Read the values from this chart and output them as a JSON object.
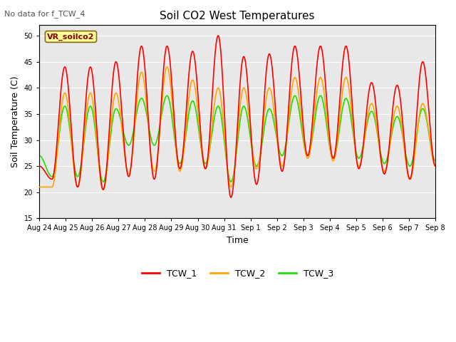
{
  "title": "Soil CO2 West Temperatures",
  "xlabel": "Time",
  "ylabel": "Soil Temperature (C)",
  "ylim": [
    15,
    52
  ],
  "yticks": [
    15,
    20,
    25,
    30,
    35,
    40,
    45,
    50
  ],
  "note": "No data for f_TCW_4",
  "annotation_label": "VR_soilco2",
  "colors": {
    "TCW_1": "#ff0000",
    "TCW_2": "#ffa500",
    "TCW_3": "#22dd00"
  },
  "line_width": 1.2,
  "plot_bg": "#e8e8e8",
  "fig_bg": "#ffffff",
  "tick_labels": [
    "Aug 24",
    "Aug 25",
    "Aug 26",
    "Aug 27",
    "Aug 28",
    "Aug 29",
    "Aug 30",
    "Aug 31",
    "Sep 1",
    "Sep 2",
    "Sep 3",
    "Sep 4",
    "Sep 5",
    "Sep 6",
    "Sep 7",
    "Sep 8"
  ],
  "n_days": 16,
  "TCW_1_data": [
    [
      25.0,
      22.5,
      44.0,
      21.0,
      44.0,
      20.5,
      45.0,
      23.0,
      48.0,
      22.5,
      48.0,
      24.5,
      47.0,
      24.5,
      50.0,
      19.0,
      46.0,
      21.5,
      46.5,
      24.0,
      48.0,
      27.0,
      48.0,
      26.5,
      48.0,
      24.5,
      41.0,
      23.5,
      40.5,
      22.5,
      45.0,
      25.0
    ]
  ],
  "TCW_2_data": [
    [
      21.0,
      21.0,
      39.0,
      21.0,
      39.0,
      20.5,
      39.0,
      23.5,
      43.0,
      24.0,
      44.0,
      24.0,
      41.5,
      24.5,
      40.0,
      21.0,
      40.0,
      24.5,
      40.0,
      25.0,
      42.0,
      26.5,
      42.0,
      26.0,
      42.0,
      25.0,
      37.0,
      24.0,
      36.5,
      22.5,
      37.0,
      25.0
    ]
  ],
  "TCW_3_data": [
    [
      27.0,
      23.0,
      36.5,
      23.0,
      36.5,
      22.0,
      36.0,
      29.0,
      38.0,
      29.0,
      38.5,
      25.5,
      37.5,
      25.5,
      36.5,
      22.0,
      36.5,
      25.0,
      36.0,
      27.0,
      38.5,
      27.0,
      38.5,
      26.5,
      38.0,
      26.5,
      35.5,
      25.5,
      34.5,
      25.0,
      36.0,
      26.0
    ]
  ]
}
